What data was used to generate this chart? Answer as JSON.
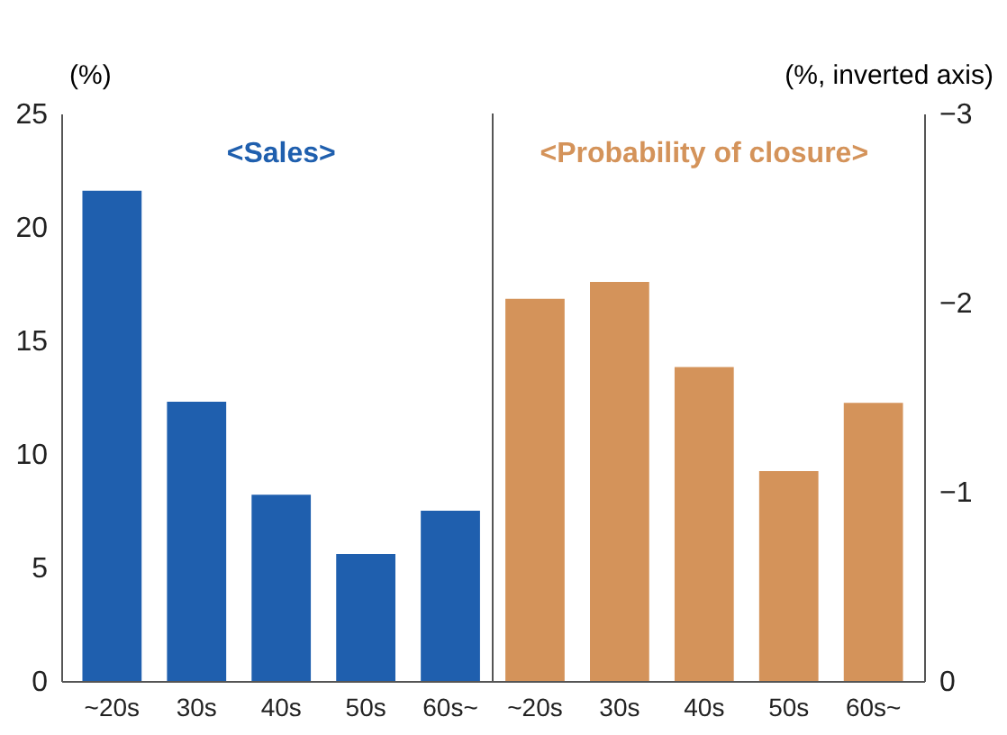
{
  "chart_data": {
    "type": "bar",
    "categories": [
      "~20s",
      "30s",
      "40s",
      "50s",
      "60s~",
      "~20s",
      "30s",
      "40s",
      "50s",
      "60s~"
    ],
    "series": [
      {
        "color": "#1f5fae",
        "values": [
          21.6,
          12.3,
          8.2,
          5.6,
          7.5,
          null,
          null,
          null,
          null,
          null
        ]
      },
      {
        "color": "#d4935a",
        "axis": "y2",
        "values": [
          null,
          null,
          null,
          null,
          null,
          -2.02,
          -2.11,
          -1.66,
          -1.11,
          -1.47
        ]
      }
    ],
    "ylabel": "(%)",
    "y2label": "(%, inverted axis)",
    "ylim": [
      0,
      25
    ],
    "yticks": [
      0,
      5,
      10,
      15,
      20,
      25
    ],
    "y2lim": [
      0,
      -3
    ],
    "y2ticks": [
      -3,
      -2,
      -1,
      0
    ],
    "annotations": [
      "<Sales>",
      "<Probability of closure>"
    ],
    "grid": false
  }
}
